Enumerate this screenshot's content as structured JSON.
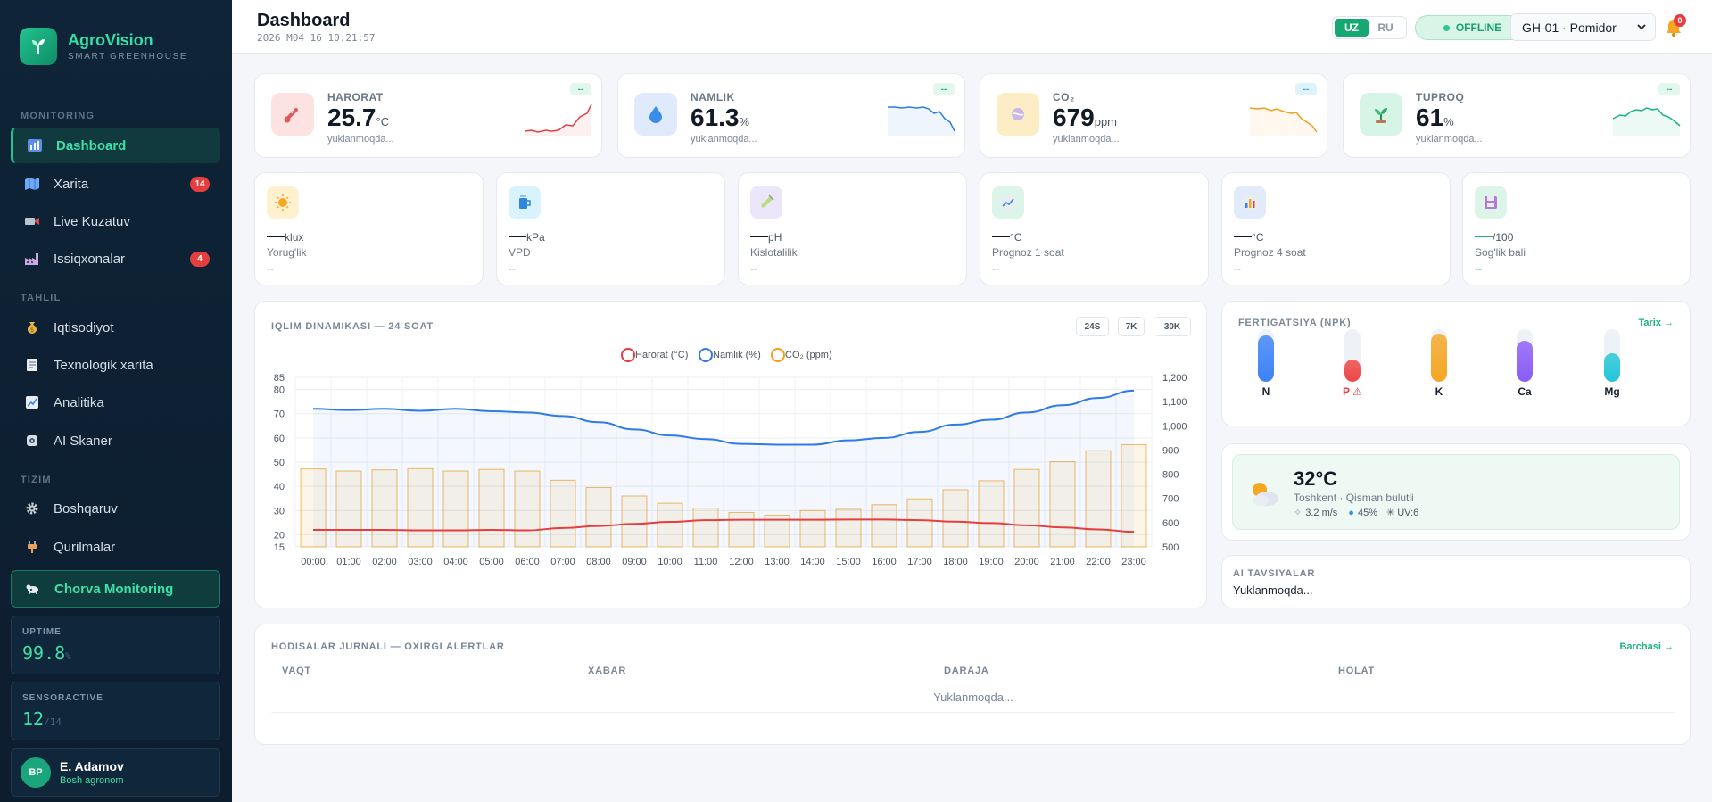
{
  "brand": {
    "name": "AgroVision",
    "subtitle": "SMART GREENHOUSE"
  },
  "sidebar": {
    "sections": [
      {
        "label": "MONITORING"
      },
      {
        "label": "TAHLIL"
      },
      {
        "label": "TIZIM"
      }
    ],
    "items": [
      {
        "label": "Dashboard",
        "icon": "chart-icon",
        "active": true
      },
      {
        "label": "Xarita",
        "icon": "map-icon",
        "badge": "14"
      },
      {
        "label": "Live Kuzatuv",
        "icon": "camera-icon"
      },
      {
        "label": "Issiqxonalar",
        "icon": "factory-icon",
        "badge": "4"
      },
      {
        "label": "Iqtisodiyot",
        "icon": "money-bag-icon"
      },
      {
        "label": "Texnologik xarita",
        "icon": "document-icon"
      },
      {
        "label": "Analitika",
        "icon": "trend-icon"
      },
      {
        "label": "AI Skaner",
        "icon": "scanner-icon"
      },
      {
        "label": "Boshqaruv",
        "icon": "gear-icon"
      },
      {
        "label": "Qurilmalar",
        "icon": "plug-icon"
      }
    ],
    "chorva": {
      "label": "Chorva Monitoring",
      "icon": "livestock-icon"
    },
    "uptime": {
      "label": "UPTIME",
      "value": "99.8",
      "unit": "%"
    },
    "sensors": {
      "label": "SENSORACTIVE",
      "value": "12",
      "total": "/14"
    },
    "user": {
      "initials": "BP",
      "name": "E. Adamov",
      "role": "Bosh agronom"
    }
  },
  "header": {
    "title": "Dashboard",
    "datetime": "2026 M04 16 10:21:57",
    "languages": [
      {
        "code": "UZ",
        "active": true
      },
      {
        "code": "RU",
        "active": false
      }
    ],
    "status": "OFFLINE",
    "greenhouse_select": "GH-01 · Pomidor",
    "notifications": "0"
  },
  "kpis": [
    {
      "label": "HARORAT",
      "value": "25.7",
      "unit": "°C",
      "sub": "yuklanmoqda...",
      "chip": "--",
      "color": "#e53e3e",
      "icon": "thermometer-icon"
    },
    {
      "label": "NAMLIK",
      "value": "61.3",
      "unit": "%",
      "sub": "yuklanmoqda...",
      "chip": "--",
      "color": "#2f7be5",
      "icon": "droplet-icon"
    },
    {
      "label": "CO₂",
      "value": "679",
      "unit": "ppm",
      "sub": "yuklanmoqda...",
      "chip": "--",
      "color": "#f0a020",
      "icon": "co2-icon"
    },
    {
      "label": "TUPROQ",
      "value": "61",
      "unit": "%",
      "sub": "yuklanmoqda...",
      "chip": "--",
      "color": "#1cb37b",
      "icon": "seedling-icon"
    }
  ],
  "minis": [
    {
      "value": "‒‒",
      "unit": "klux",
      "label": "Yorug'lik",
      "sub": "--",
      "icon": "sun-icon"
    },
    {
      "value": "‒‒",
      "unit": "kPa",
      "label": "VPD",
      "sub": "--",
      "icon": "cup-icon"
    },
    {
      "value": "‒‒",
      "unit": "pH",
      "label": "Kislotalilik",
      "sub": "--",
      "icon": "test-tube-icon"
    },
    {
      "value": "‒‒",
      "unit": "°C",
      "label": "Prognoz 1 soat",
      "sub": "--",
      "icon": "trend-up-icon"
    },
    {
      "value": "‒‒",
      "unit": "°C",
      "label": "Prognoz 4 soat",
      "sub": "--",
      "icon": "bar-chart-icon"
    },
    {
      "value": "‒‒",
      "unit": "/100",
      "label": "Sog'lik bali",
      "sub": "--",
      "icon": "heart-icon"
    }
  ],
  "climate": {
    "title": "IQLIM DINAMIKASI — 24 SOAT",
    "ranges": [
      "24S",
      "7K",
      "30K"
    ]
  },
  "chart_data": {
    "type": "line",
    "x": [
      "00:00",
      "01:00",
      "02:00",
      "03:00",
      "04:00",
      "05:00",
      "06:00",
      "07:00",
      "08:00",
      "09:00",
      "10:00",
      "11:00",
      "12:00",
      "13:00",
      "14:00",
      "15:00",
      "16:00",
      "17:00",
      "18:00",
      "19:00",
      "20:00",
      "21:00",
      "22:00",
      "23:00"
    ],
    "series": [
      {
        "name": "Harorat (°C)",
        "type": "line",
        "axis": "left",
        "color": "#e53e3e",
        "values": [
          22,
          22,
          22,
          21.8,
          21.8,
          22,
          21.8,
          22.8,
          23.6,
          24.5,
          25.3,
          26,
          26.2,
          26.2,
          26.2,
          26.3,
          26.3,
          26,
          25.4,
          24.8,
          23.9,
          23,
          22.2,
          21.2
        ]
      },
      {
        "name": "Namlik (%)",
        "type": "line",
        "axis": "left",
        "color": "#2f7be5",
        "values": [
          72,
          71.5,
          72,
          71.2,
          72,
          71,
          70.5,
          69,
          66.5,
          63.5,
          61,
          59.5,
          57.5,
          57.2,
          57.2,
          59,
          60,
          62.5,
          65.5,
          67.5,
          70.5,
          73.5,
          76.5,
          79.5
        ]
      },
      {
        "name": "CO₂ (ppm)",
        "type": "bar",
        "axis": "right",
        "color": "#f0a020",
        "values": [
          822,
          813,
          818,
          823,
          813,
          820,
          813,
          775,
          745,
          710,
          680,
          660,
          642,
          631,
          650,
          655,
          674,
          698,
          736,
          773,
          820,
          852,
          897,
          922
        ]
      }
    ],
    "ylim_left": [
      15,
      85
    ],
    "yticks_left": [
      15,
      20,
      30,
      40,
      50,
      60,
      70,
      80,
      85
    ],
    "ylim_right": [
      500,
      1200
    ],
    "yticks_right": [
      "500",
      "600",
      "700",
      "800",
      "900",
      "1,000",
      "1,100",
      "1,200"
    ],
    "legend": "top-center",
    "grid": true
  },
  "npk": {
    "title": "FERTIGATSIYA (NPK)",
    "link": "Tarix →",
    "items": [
      {
        "name": "N",
        "level": 0.88,
        "color": "#3b82f6",
        "alert": false
      },
      {
        "name": "P ⚠",
        "level": 0.42,
        "color": "#ef4444",
        "alert": true
      },
      {
        "name": "K",
        "level": 0.92,
        "color": "#f5a623",
        "alert": false
      },
      {
        "name": "Ca",
        "level": 0.78,
        "color": "#8b5cf6",
        "alert": false
      },
      {
        "name": "Mg",
        "level": 0.55,
        "color": "#22c5d8",
        "alert": false
      }
    ]
  },
  "weather": {
    "temp": "32°C",
    "location": "Toshkent · Qisman bulutli",
    "wind": "3.2 m/s",
    "humidity": "45%",
    "uv": "UV:6",
    "icon": "partly-cloudy-icon"
  },
  "ai": {
    "title": "AI TAVSIYALAR",
    "text": "Yuklanmoqda..."
  },
  "events": {
    "title": "HODISALAR JURNALI — OXIRGI ALERTLAR",
    "link": "Barchasi →",
    "columns": [
      "VAQT",
      "XABAR",
      "DARAJA",
      "HOLAT"
    ],
    "loading": "Yuklanmoqda..."
  }
}
